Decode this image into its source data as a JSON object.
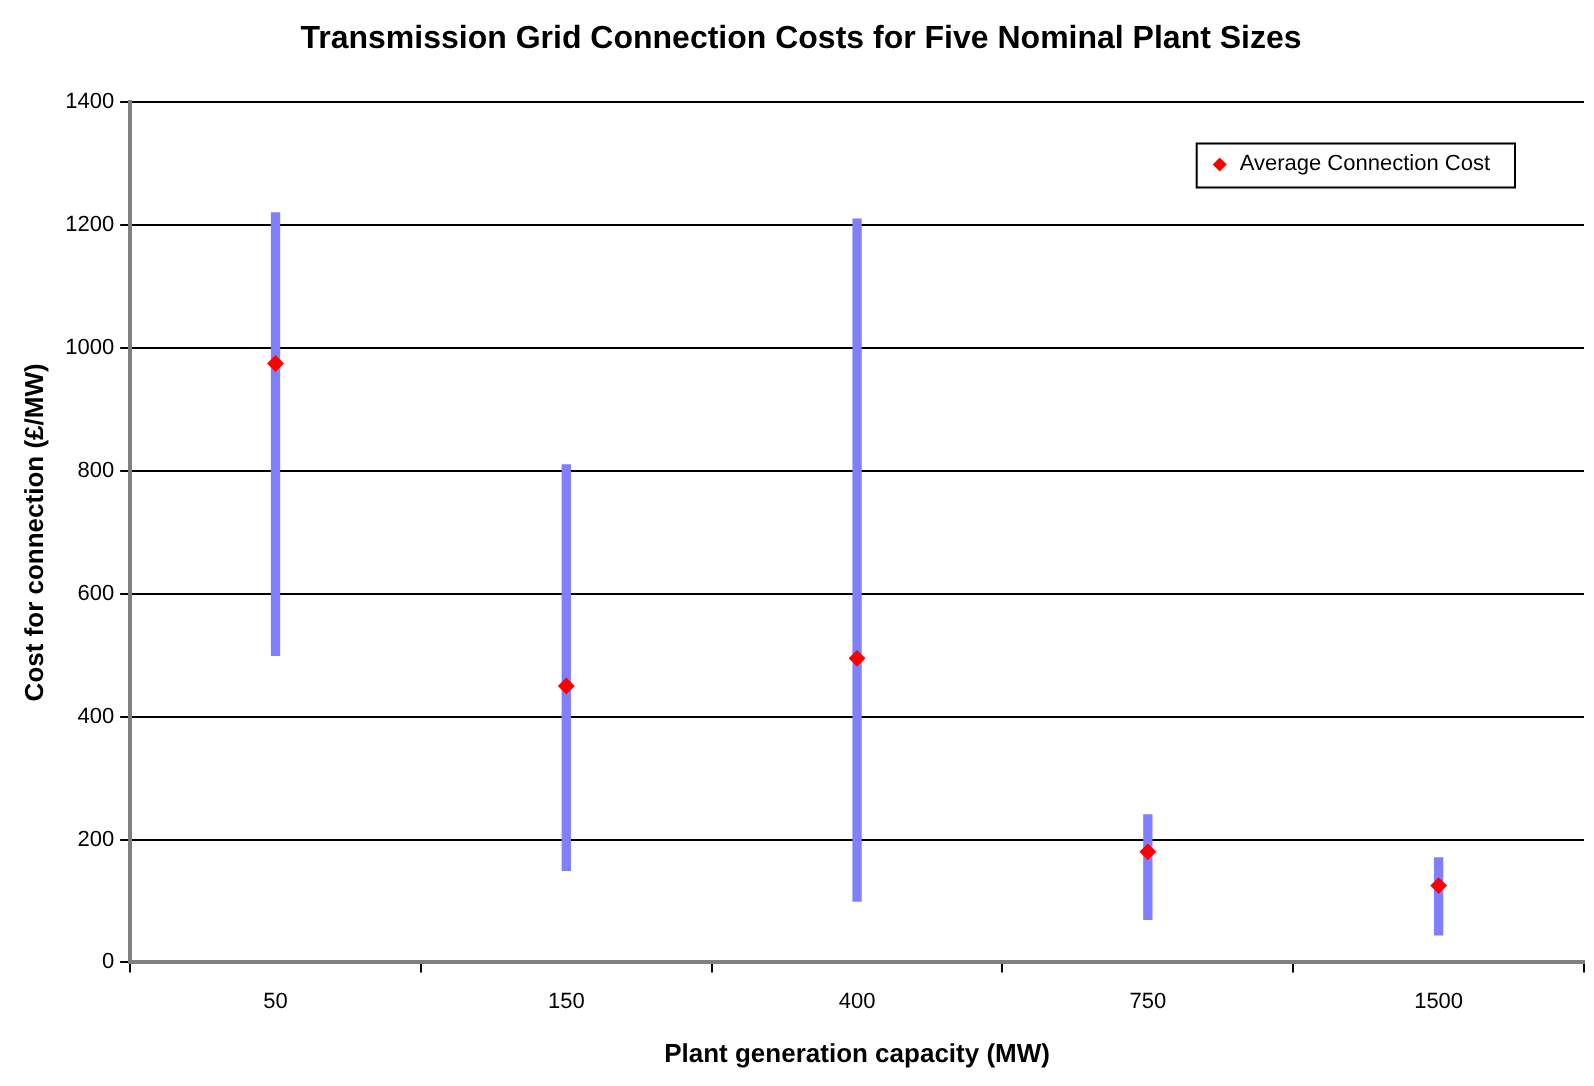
{
  "chart_data": {
    "type": "scatter",
    "title": "Transmission Grid Connection Costs for Five Nominal Plant Sizes",
    "xlabel": "Plant generation capacity (MW)",
    "ylabel": "Cost for connection (£/MW)",
    "categories": [
      "50",
      "150",
      "400",
      "750",
      "1500"
    ],
    "series": [
      {
        "type": "bar",
        "color": "#8080ff",
        "base": [
          500,
          150,
          100,
          70,
          45
        ],
        "values": [
          720,
          660,
          1110,
          170,
          125
        ]
      },
      {
        "type": "scatter",
        "name": "Average Connection Cost",
        "color": "#ff0000",
        "values": [
          975,
          450,
          495,
          180,
          125
        ]
      }
    ],
    "ylim": [
      0,
      1400
    ],
    "yticks": [
      0,
      200,
      400,
      600,
      800,
      1000,
      1200,
      1400
    ],
    "grid": "y",
    "legend": "top right",
    "marker": "diamond"
  }
}
